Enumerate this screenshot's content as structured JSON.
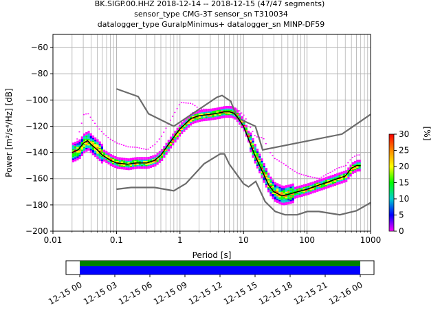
{
  "colors": {
    "noise_models": "#6b6b6b",
    "mode": "#000000",
    "coverage_primary": "#0000ff",
    "coverage_secondary": "#008000",
    "colormap": [
      "#ff00ff",
      "#0000ff",
      "#00cccc",
      "#00ff00",
      "#ffff00",
      "#ff8800",
      "#ff0000"
    ]
  },
  "chart_data": [
    {
      "type": "heatmap",
      "title_lines": [
        "BK.SIGP.00.HHZ   2018-12-14 -- 2018-12-15  (47/47 segments)",
        "sensor_type CMG-3T sensor_sn T310034",
        "datalogger_type GuralpMinimus+ datalogger_sn MINP-DF59"
      ],
      "xlabel": "Period [s]",
      "ylabel": "Power [m²/s⁴/Hz] [dB]",
      "xscale": "log",
      "xlim": [
        0.01,
        1000
      ],
      "ylim": [
        -200,
        -50
      ],
      "x_ticks": [
        "0.01",
        "0.1",
        "1",
        "10",
        "100",
        "1000"
      ],
      "y_ticks": [
        "-200",
        "-180",
        "-160",
        "-140",
        "-120",
        "-100",
        "-80",
        "-60"
      ],
      "grid": true,
      "colorbar": {
        "label": "[%]",
        "range": [
          0,
          30
        ],
        "ticks": [
          "0",
          "5",
          "10",
          "15",
          "20",
          "25",
          "30"
        ]
      },
      "series": [
        {
          "role": "high-noise-model",
          "x": [
            0.1,
            0.22,
            0.32,
            0.8,
            3.8,
            4.6,
            6.3,
            7.9,
            15.4,
            20,
            354.8,
            1000
          ],
          "y": [
            -91.5,
            -97.4,
            -110.5,
            -120,
            -98,
            -96.5,
            -101,
            -113.5,
            -120,
            -138,
            -126,
            -111
          ]
        },
        {
          "role": "low-noise-model",
          "x": [
            0.1,
            0.17,
            0.4,
            0.8,
            1.24,
            2.4,
            4.3,
            5,
            6,
            10,
            12,
            15.6,
            21.9,
            31.6,
            45,
            70,
            101,
            154,
            328,
            600,
            1000
          ],
          "y": [
            -168,
            -166.7,
            -166.7,
            -169.2,
            -163.7,
            -148.6,
            -141.1,
            -141.1,
            -149,
            -163.8,
            -166.2,
            -162.1,
            -177.5,
            -185,
            -187.5,
            -187.5,
            -185,
            -185,
            -187.5,
            -184.4,
            -178.3
          ]
        },
        {
          "role": "psd-mode",
          "x": [
            0.02,
            0.025,
            0.03,
            0.035,
            0.04,
            0.05,
            0.06,
            0.08,
            0.1,
            0.15,
            0.2,
            0.3,
            0.4,
            0.5,
            0.7,
            1,
            1.5,
            2,
            3,
            4,
            5,
            6,
            7,
            8,
            10,
            12,
            15,
            20,
            25,
            30,
            40,
            50,
            70,
            100,
            150,
            200,
            300,
            400,
            500,
            600,
            700
          ],
          "y": [
            -140,
            -138,
            -133,
            -131,
            -134,
            -138,
            -142,
            -146,
            -148,
            -149,
            -148,
            -148,
            -146,
            -142,
            -132,
            -122,
            -114,
            -112,
            -111,
            -110,
            -109,
            -109,
            -110,
            -113,
            -120,
            -130,
            -142,
            -155,
            -165,
            -170,
            -173,
            -172,
            -170,
            -168,
            -165,
            -163,
            -160,
            -158,
            -152,
            -150,
            -150
          ]
        }
      ]
    },
    {
      "type": "timeline",
      "x_ticks": [
        "12-15 00",
        "12-15 03",
        "12-15 06",
        "12-15 09",
        "12-15 12",
        "12-15 15",
        "12-15 18",
        "12-15 21",
        "12-16 00"
      ]
    }
  ]
}
